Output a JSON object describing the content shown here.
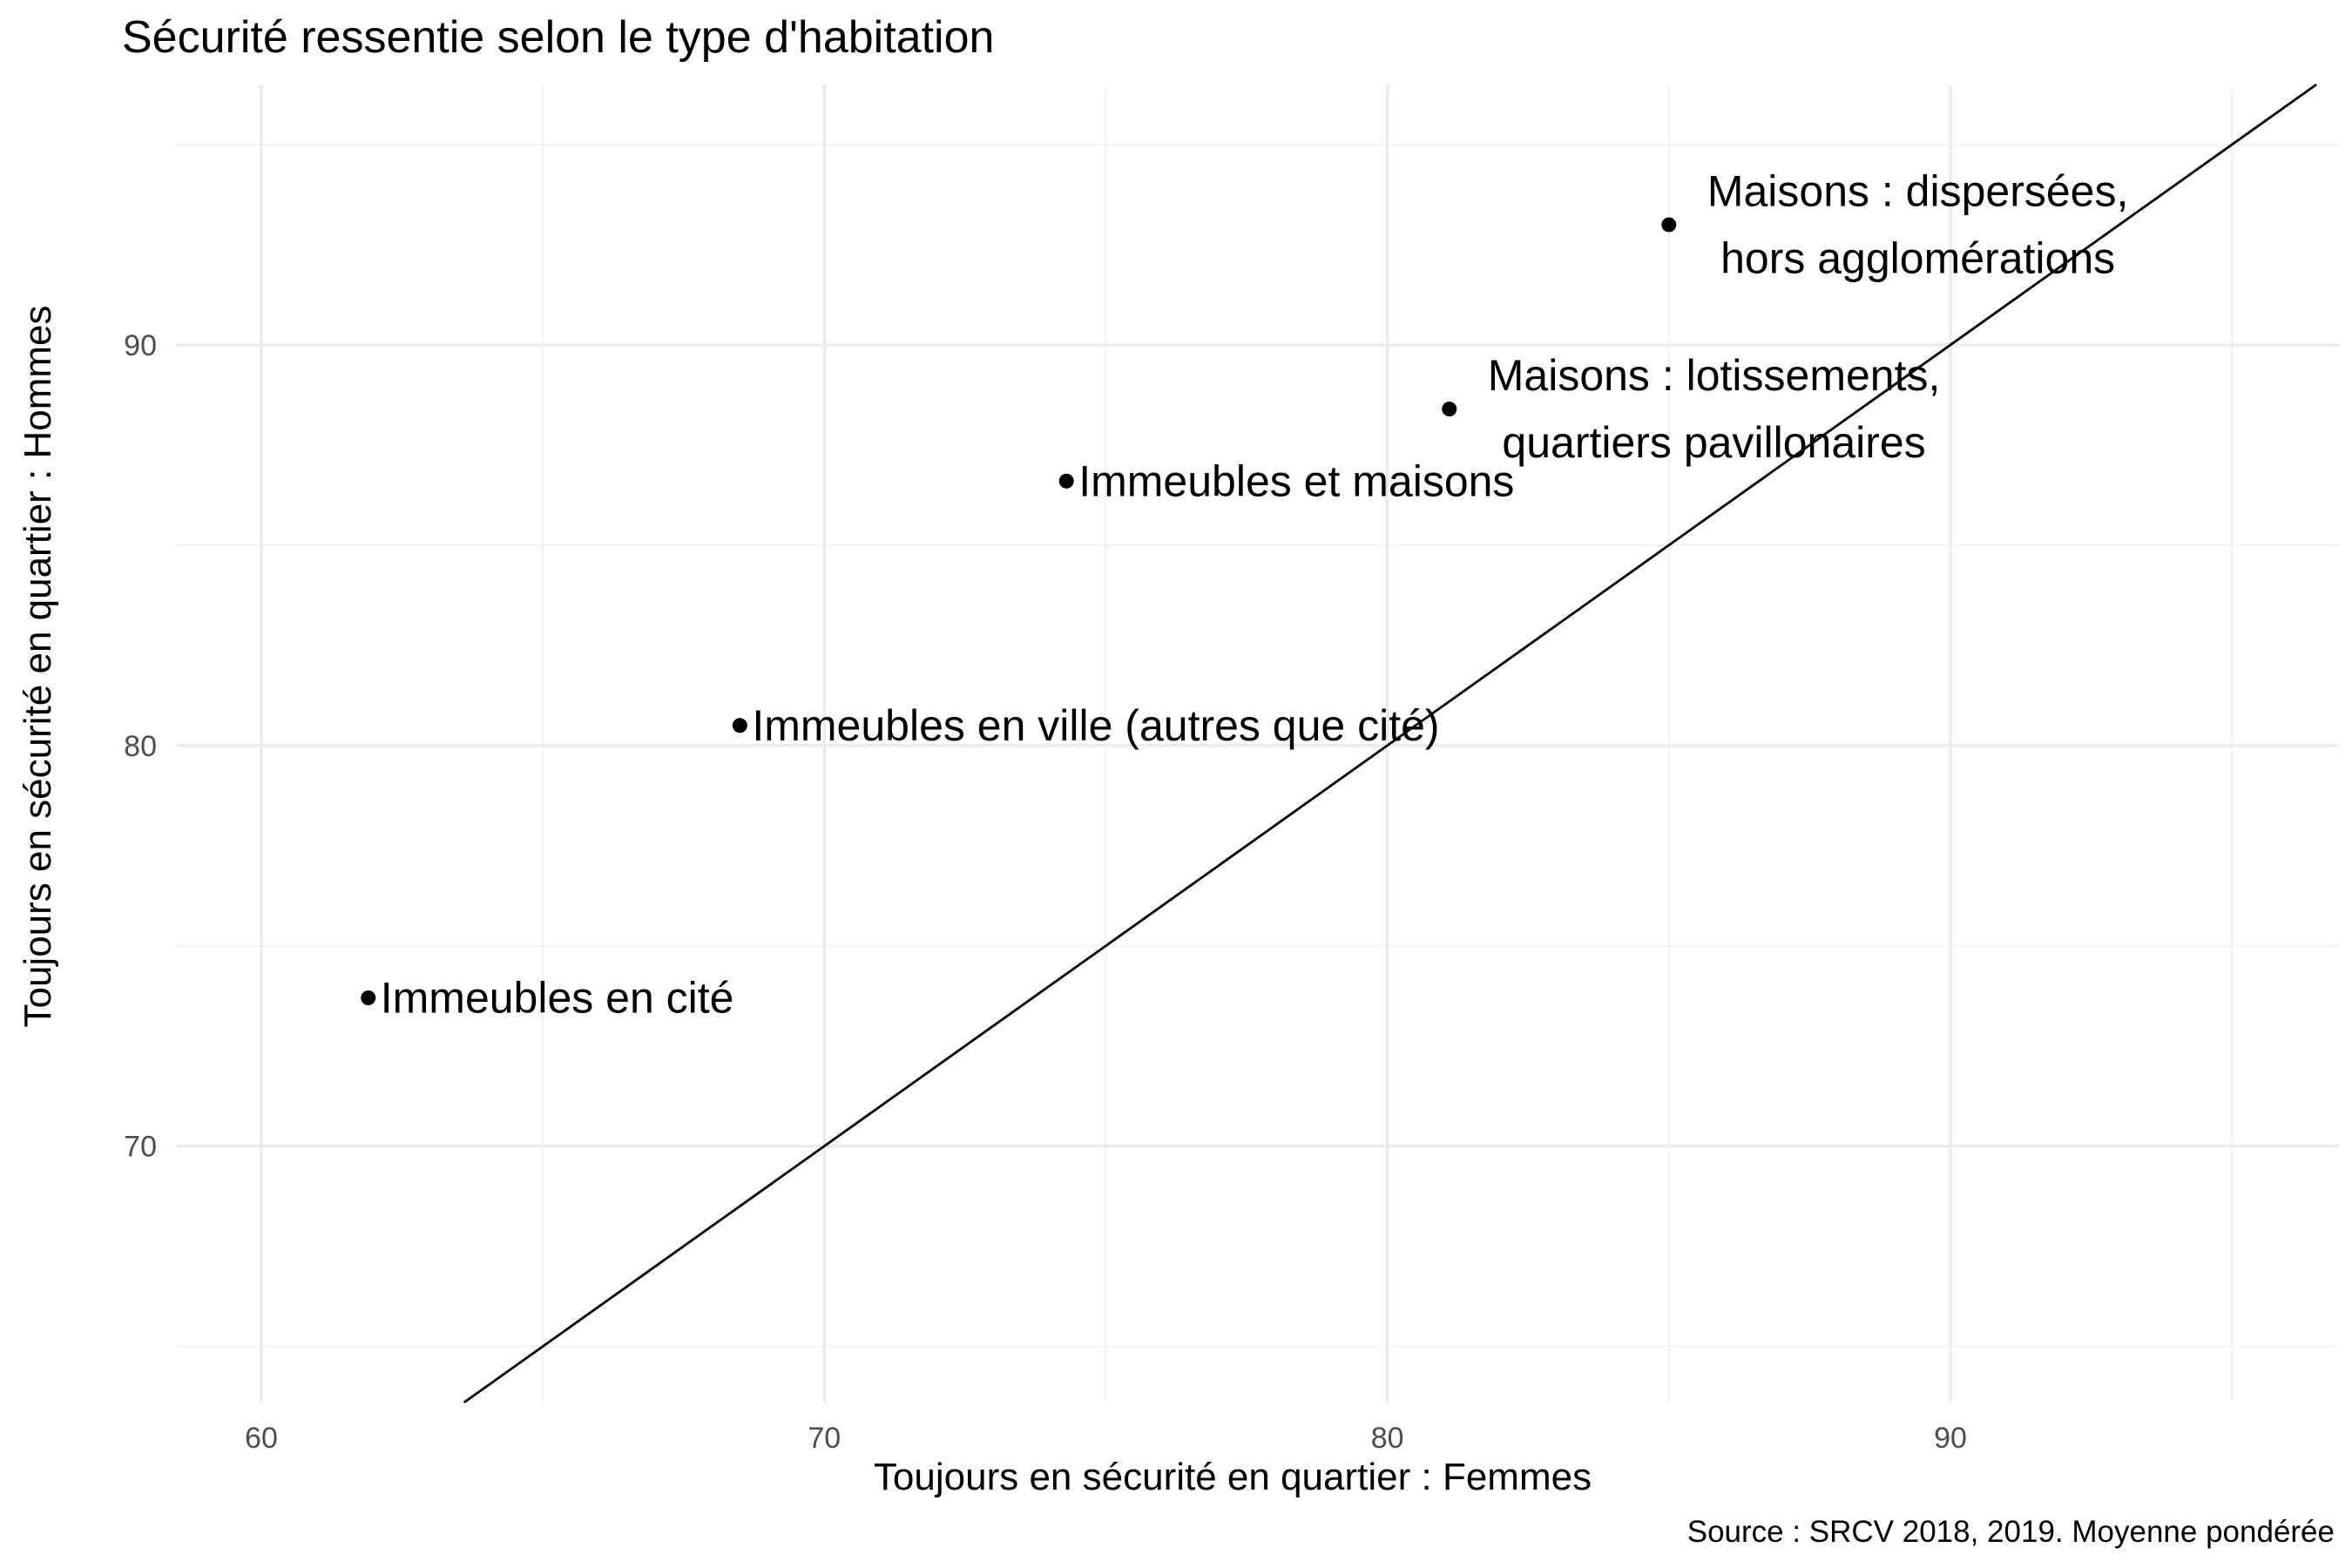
{
  "chart_data": {
    "type": "scatter",
    "title": "Sécurité ressentie selon le type d'habitation",
    "xlabel": "Toujours en sécurité en quartier : Femmes",
    "ylabel": "Toujours en sécurité en quartier : Hommes",
    "caption": "Source : SRCV 2018, 2019. Moyenne pondérée",
    "xlim": [
      58.5,
      96.9
    ],
    "ylim": [
      63.6,
      96.5
    ],
    "x_ticks": [
      60,
      70,
      80,
      90
    ],
    "y_ticks": [
      70,
      80,
      90
    ],
    "grid": true,
    "points": [
      {
        "label": [
          "Maisons : dispersées,",
          "hors agglomérations"
        ],
        "x": 85.0,
        "y": 93.0
      },
      {
        "label": [
          "Maisons : lotissements,",
          "quartiers pavillonaires"
        ],
        "x": 81.1,
        "y": 88.4
      },
      {
        "label": [
          "Immeubles et maisons"
        ],
        "x": 74.3,
        "y": 86.6
      },
      {
        "label": [
          "Immeubles en ville (autres que cité)"
        ],
        "x": 68.5,
        "y": 80.5
      },
      {
        "label": [
          "Immeubles en cité"
        ],
        "x": 61.9,
        "y": 73.7
      }
    ],
    "reference_line": {
      "type": "identity",
      "slope": 1,
      "intercept": 0
    }
  }
}
